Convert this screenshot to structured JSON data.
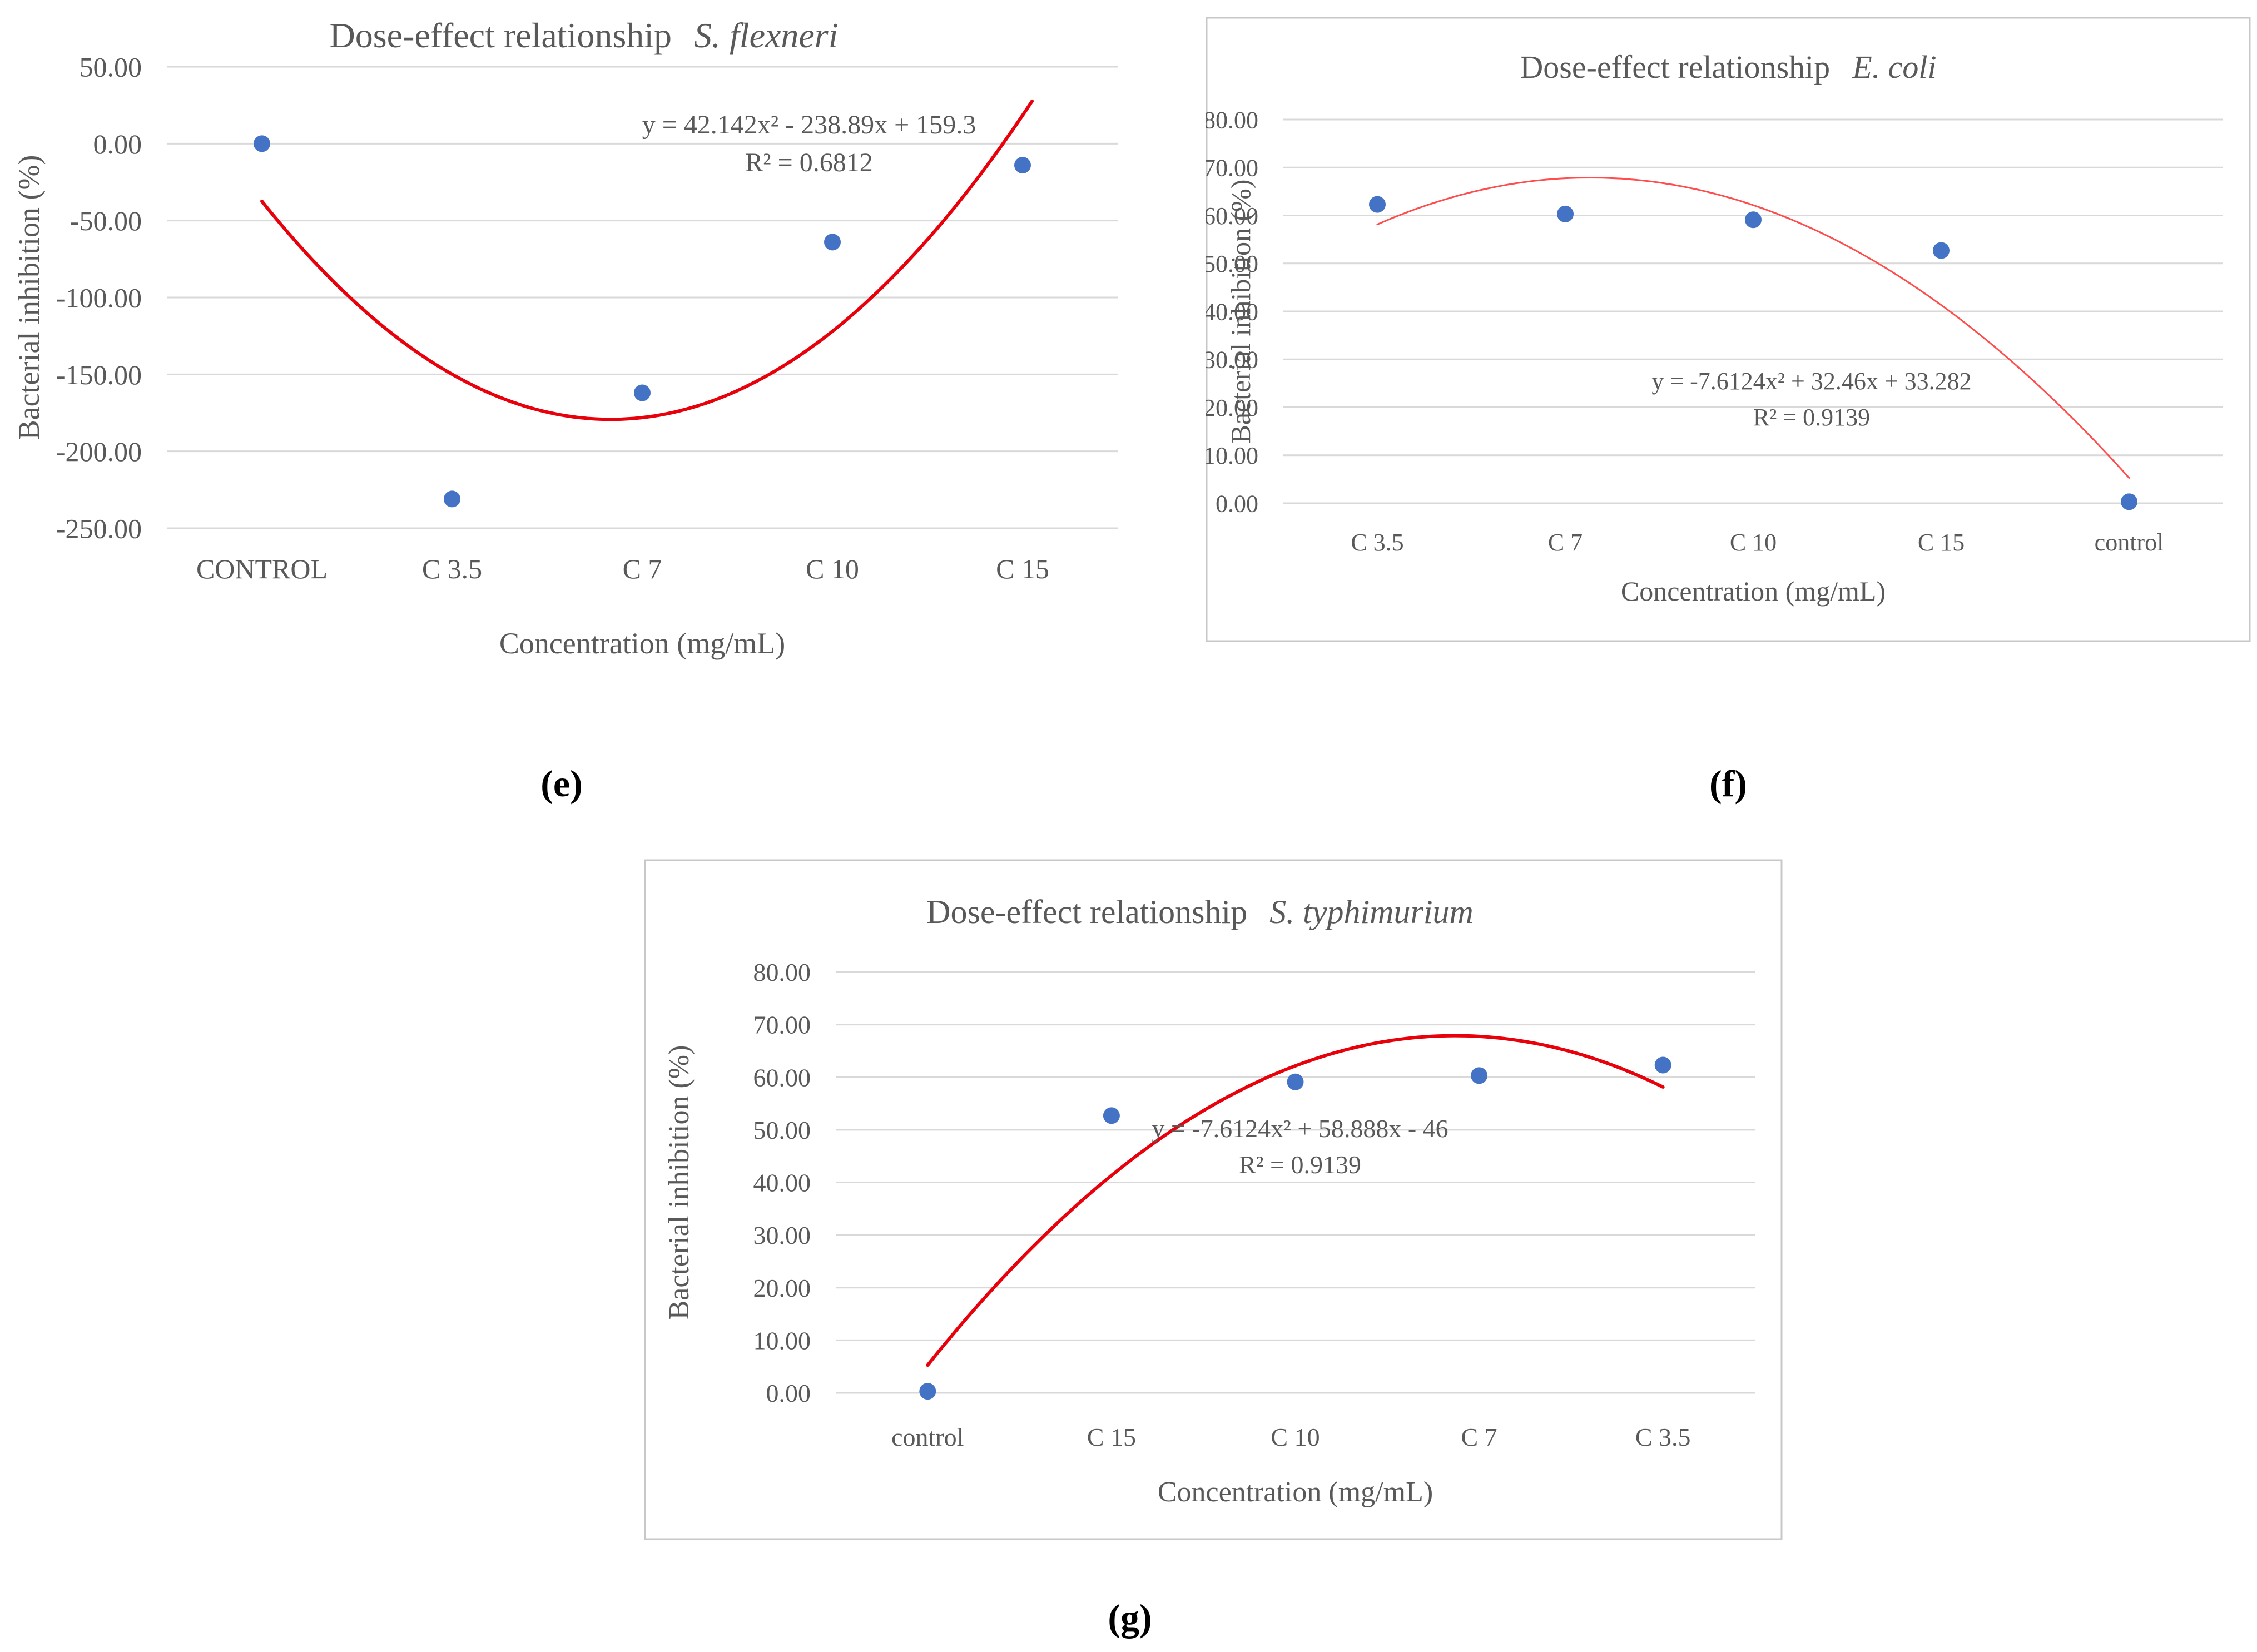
{
  "chart_data": [
    {
      "type": "scatter",
      "panel_label": "e",
      "title_main": "Dose-effect relationship",
      "title_species": "S. flexneri",
      "xlabel": "Concentration (mg/mL)",
      "ylabel": "Bacterial inhibition (%)",
      "categories": [
        "CONTROL",
        "C 3.5",
        "C 7",
        "C 10",
        "C 15"
      ],
      "values": [
        0.0,
        -231.0,
        -162.0,
        -64.0,
        -14.0
      ],
      "ylim": [
        -250,
        50
      ],
      "yticks": [
        "50.00",
        "0.00",
        "-50.00",
        "-100.00",
        "-150.00",
        "-200.00",
        "-250.00"
      ],
      "trendline": {
        "type": "polynomial",
        "a": 42.142,
        "b": -238.89,
        "c": 159.3,
        "xrange": [
          1,
          5.05
        ]
      },
      "equation": "y = 42.142x² - 238.89x + 159.3",
      "r2": "R² = 0.6812",
      "border": false,
      "point_color": "#4472c4",
      "trend_color": "#e8000b"
    },
    {
      "type": "scatter",
      "panel_label": "f",
      "title_main": "Dose-effect relationship",
      "title_species": "E. coli",
      "xlabel": "Concentration (mg/mL)",
      "ylabel": "Bacterial inhibition (%)",
      "categories": [
        "C 3.5",
        "C 7",
        "C 10",
        "C 15",
        "control"
      ],
      "values": [
        62.3,
        60.3,
        59.1,
        52.7,
        0.3
      ],
      "ylim": [
        0,
        80
      ],
      "yticks": [
        "80.00",
        "70.00",
        "60.00",
        "50.00",
        "40.00",
        "30.00",
        "20.00",
        "10.00",
        "0.00"
      ],
      "trendline": {
        "type": "polynomial",
        "a": -7.6124,
        "b": 32.46,
        "c": 33.282,
        "xrange": [
          1,
          5
        ]
      },
      "equation": "y = -7.6124x² + 32.46x + 33.282",
      "r2": "R² = 0.9139",
      "border": true,
      "point_color": "#4472c4",
      "trend_color": "#ff4d4d"
    },
    {
      "type": "scatter",
      "panel_label": "g",
      "title_main": "Dose-effect relationship",
      "title_species": "S. typhimurium",
      "xlabel": "Concentration (mg/mL)",
      "ylabel": "Bacterial inhibition (%)",
      "categories": [
        "control",
        "C 15",
        "C 10",
        "C 7",
        "C 3.5"
      ],
      "values": [
        0.3,
        52.7,
        59.1,
        60.3,
        62.3
      ],
      "ylim": [
        0,
        80
      ],
      "yticks": [
        "80.00",
        "70.00",
        "60.00",
        "50.00",
        "40.00",
        "30.00",
        "20.00",
        "10.00",
        "0.00"
      ],
      "trendline": {
        "type": "polynomial",
        "a": -7.6124,
        "b": 58.888,
        "c": -46,
        "xrange": [
          1,
          5
        ]
      },
      "equation": "y = -7.6124x² + 58.888x - 46",
      "r2": "R² = 0.9139",
      "border": true,
      "point_color": "#4472c4",
      "trend_color": "#e8000b"
    }
  ]
}
